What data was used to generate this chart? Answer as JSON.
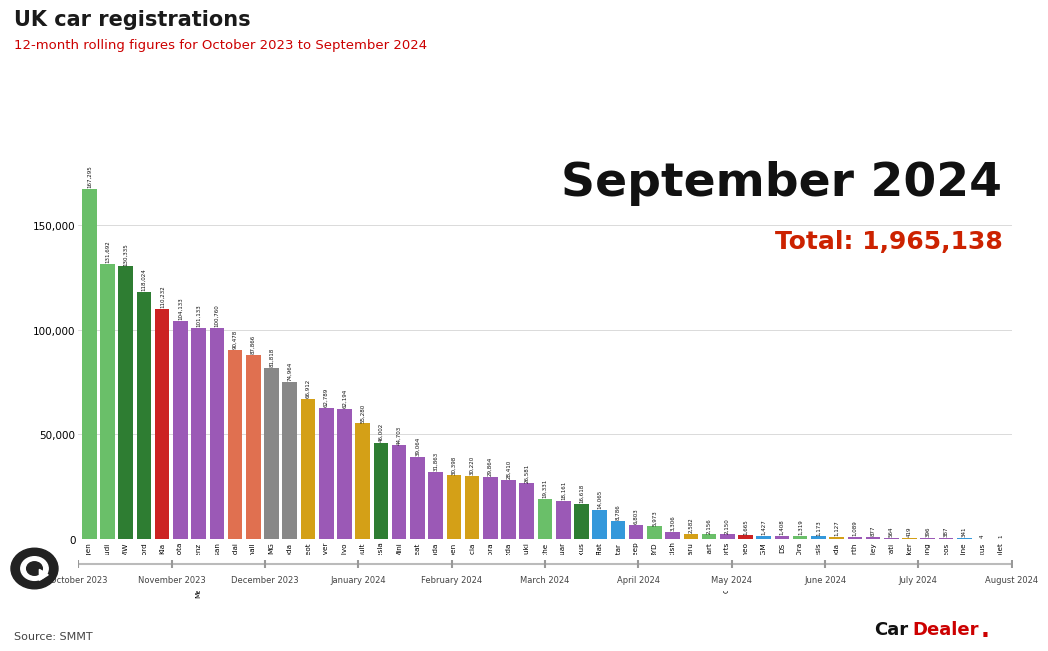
{
  "title": "UK car registrations",
  "subtitle": "12-month rolling figures for October 2023 to September 2024",
  "period": "September 2024",
  "total": "Total: 1,965,138",
  "source": "Source: SMMT",
  "brands": [
    "Volkswagen",
    "Audi",
    "BMW",
    "Ford",
    "Kia",
    "Toyota",
    "Mercedes-Benz",
    "Nissan",
    "Hyundai",
    "Vauxhall",
    "MG",
    "Skoda",
    "Peugeot",
    "Land Rover",
    "Volvo",
    "Renault",
    "Tesla",
    "Mini",
    "Seat",
    "Honda",
    "Citroen",
    "Dacia",
    "Cupra",
    "Mazda",
    "Suzuki",
    "Porsche",
    "Jaguar",
    "Lexus",
    "Fiat",
    "Polestar",
    "Jeep",
    "BYD",
    "Other British",
    "Subaru",
    "Smart",
    "Other imports",
    "Alfa Romeo",
    "KGM",
    "DS",
    "GM Ora",
    "Genesis",
    "Omoda",
    "Abarth",
    "Bentley",
    "Maserati",
    "Fisker",
    "SsangYong",
    "Ineos",
    "Alpine",
    "Maxus",
    "Chevrolet"
  ],
  "values": [
    167295,
    131692,
    130335,
    118024,
    110232,
    104133,
    101133,
    100760,
    90478,
    87866,
    81818,
    74964,
    66912,
    62789,
    62194,
    55280,
    46002,
    44703,
    39064,
    31863,
    30398,
    30220,
    29864,
    28410,
    26581,
    19331,
    18161,
    16618,
    14065,
    8786,
    6803,
    5973,
    3306,
    2582,
    2156,
    2150,
    1665,
    1427,
    1408,
    1319,
    1173,
    1127,
    1089,
    877,
    564,
    419,
    396,
    387,
    341,
    4,
    1
  ],
  "colors": [
    "#6abf69",
    "#6abf69",
    "#2e7d32",
    "#2e7d32",
    "#cc2222",
    "#9b59b6",
    "#9b59b6",
    "#9b59b6",
    "#e07050",
    "#e07050",
    "#888888",
    "#888888",
    "#d4a017",
    "#9b59b6",
    "#9b59b6",
    "#d4a017",
    "#2e7d32",
    "#9b59b6",
    "#9b59b6",
    "#9b59b6",
    "#d4a017",
    "#d4a017",
    "#9b59b6",
    "#9b59b6",
    "#9b59b6",
    "#6abf69",
    "#9b59b6",
    "#2e7d32",
    "#3498db",
    "#3498db",
    "#9b59b6",
    "#6abf69",
    "#9b59b6",
    "#d4a017",
    "#6abf69",
    "#9b59b6",
    "#cc2222",
    "#3498db",
    "#9b59b6",
    "#6abf69",
    "#3498db",
    "#d4a017",
    "#9b59b6",
    "#9b59b6",
    "#9b59b6",
    "#d4a017",
    "#9b59b6",
    "#9b59b6",
    "#3498db",
    "#9b59b6",
    "#9b59b6"
  ],
  "timeline": [
    "October 2023",
    "November 2023",
    "December 2023",
    "January 2024",
    "February 2024",
    "March 2024",
    "April 2024",
    "May 2024",
    "June 2024",
    "July 2024",
    "August 2024"
  ],
  "bg_color": "#ffffff",
  "title_color": "#1a1a1a",
  "subtitle_color": "#cc0000",
  "period_color": "#111111",
  "total_color": "#cc2200",
  "yticks": [
    0,
    50000,
    100000,
    150000
  ],
  "ylim": [
    0,
    185000
  ]
}
